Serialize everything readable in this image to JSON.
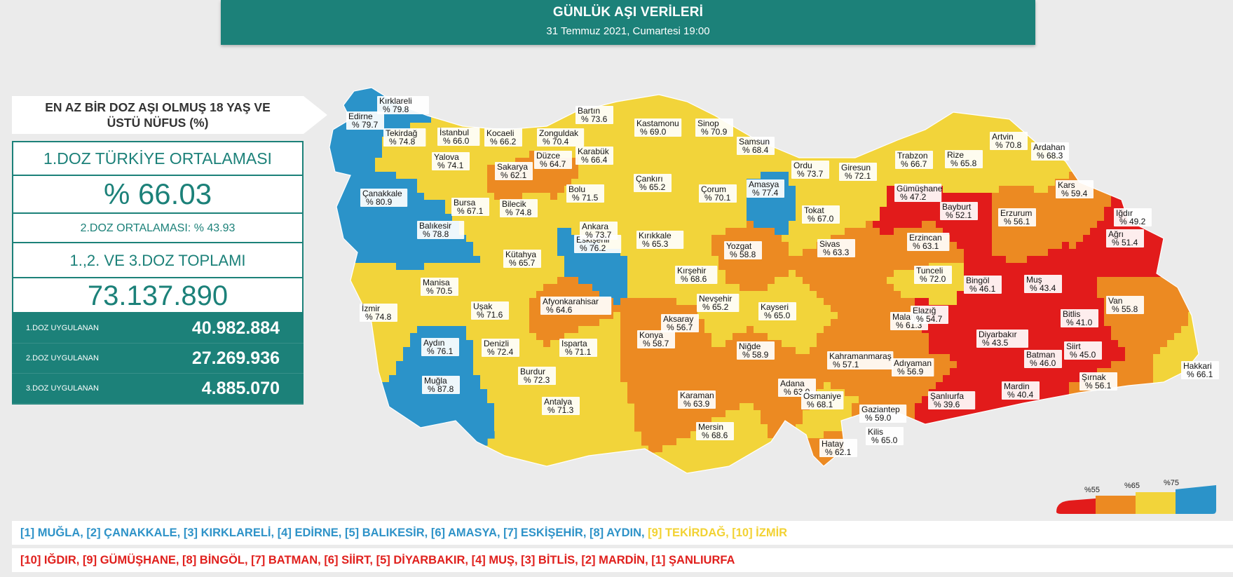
{
  "header": {
    "title": "GÜNLÜK AŞI VERİLERİ",
    "subtitle": "31 Temmuz 2021, Cumartesi 19:00"
  },
  "panel": {
    "title_line1": "EN AZ BİR DOZ AŞI OLMUŞ 18 YAŞ VE",
    "title_line2": "ÜSTÜ NÜFUS (%)",
    "dose1_avg_label": "1.DOZ TÜRKİYE ORTALAMASI",
    "dose1_avg_value": "% 66.03",
    "dose2_avg_label": "2.DOZ ORTALAMASI: % 43.93",
    "total_label": "1.,2. VE 3.DOZ TOPLAMI",
    "total_value": "73.137.890",
    "rows": [
      {
        "label": "1.DOZ UYGULANAN",
        "value": "40.982.884"
      },
      {
        "label": "2.DOZ UYGULANAN",
        "value": "27.269.936"
      },
      {
        "label": "3.DOZ UYGULANAN",
        "value": "4.885.070"
      }
    ]
  },
  "colors": {
    "blue": "#2b93c9",
    "yellow": "#f2d43a",
    "orange": "#ec8a22",
    "red": "#e21b1b",
    "teal": "#1c8179"
  },
  "provinces": [
    {
      "name": "Kırklareli",
      "value": "% 79.8",
      "cat": "blue"
    },
    {
      "name": "Edirne",
      "value": "% 79.7",
      "cat": "blue"
    },
    {
      "name": "Tekirdağ",
      "value": "% 74.8",
      "cat": "yellow"
    },
    {
      "name": "İstanbul",
      "value": "% 66.0",
      "cat": "yellow"
    },
    {
      "name": "Kocaeli",
      "value": "% 66.2",
      "cat": "yellow"
    },
    {
      "name": "Yalova",
      "value": "% 74.1",
      "cat": "yellow"
    },
    {
      "name": "Sakarya",
      "value": "% 62.1",
      "cat": "orange"
    },
    {
      "name": "Düzce",
      "value": "% 64.7",
      "cat": "orange"
    },
    {
      "name": "Zonguldak",
      "value": "% 70.4",
      "cat": "yellow"
    },
    {
      "name": "Bartın",
      "value": "% 73.6",
      "cat": "yellow"
    },
    {
      "name": "Karabük",
      "value": "% 66.4",
      "cat": "yellow"
    },
    {
      "name": "Kastamonu",
      "value": "% 69.0",
      "cat": "yellow"
    },
    {
      "name": "Sinop",
      "value": "% 70.9",
      "cat": "yellow"
    },
    {
      "name": "Samsun",
      "value": "% 68.4",
      "cat": "yellow"
    },
    {
      "name": "Ordu",
      "value": "% 73.7",
      "cat": "yellow"
    },
    {
      "name": "Giresun",
      "value": "% 72.1",
      "cat": "yellow"
    },
    {
      "name": "Trabzon",
      "value": "% 66.7",
      "cat": "yellow"
    },
    {
      "name": "Rize",
      "value": "% 65.8",
      "cat": "yellow"
    },
    {
      "name": "Artvin",
      "value": "% 70.8",
      "cat": "yellow"
    },
    {
      "name": "Ardahan",
      "value": "% 68.3",
      "cat": "yellow"
    },
    {
      "name": "Çanakkale",
      "value": "% 80.9",
      "cat": "blue"
    },
    {
      "name": "Bursa",
      "value": "% 67.1",
      "cat": "yellow"
    },
    {
      "name": "Bilecik",
      "value": "% 74.8",
      "cat": "yellow"
    },
    {
      "name": "Bolu",
      "value": "% 71.5",
      "cat": "yellow"
    },
    {
      "name": "Çankırı",
      "value": "% 65.2",
      "cat": "yellow"
    },
    {
      "name": "Çorum",
      "value": "% 70.1",
      "cat": "yellow"
    },
    {
      "name": "Amasya",
      "value": "% 77.4",
      "cat": "blue"
    },
    {
      "name": "Tokat",
      "value": "% 67.0",
      "cat": "yellow"
    },
    {
      "name": "Gümüşhane",
      "value": "% 47.2",
      "cat": "red"
    },
    {
      "name": "Bayburt",
      "value": "% 52.1",
      "cat": "red"
    },
    {
      "name": "Erzurum",
      "value": "% 56.1",
      "cat": "orange"
    },
    {
      "name": "Kars",
      "value": "% 59.4",
      "cat": "orange"
    },
    {
      "name": "Iğdır",
      "value": "% 49.2",
      "cat": "red"
    },
    {
      "name": "Balıkesir",
      "value": "% 78.8",
      "cat": "blue"
    },
    {
      "name": "Eskişehir",
      "value": "% 76.2",
      "cat": "blue"
    },
    {
      "name": "Ankara",
      "value": "% 73.7",
      "cat": "yellow"
    },
    {
      "name": "Kırıkkale",
      "value": "% 65.3",
      "cat": "yellow"
    },
    {
      "name": "Yozgat",
      "value": "% 58.8",
      "cat": "orange"
    },
    {
      "name": "Sivas",
      "value": "% 63.3",
      "cat": "orange"
    },
    {
      "name": "Erzincan",
      "value": "% 63.1",
      "cat": "orange"
    },
    {
      "name": "Ağrı",
      "value": "% 51.4",
      "cat": "red"
    },
    {
      "name": "Kütahya",
      "value": "% 65.7",
      "cat": "yellow"
    },
    {
      "name": "Manisa",
      "value": "% 70.5",
      "cat": "yellow"
    },
    {
      "name": "Kırşehir",
      "value": "% 68.6",
      "cat": "yellow"
    },
    {
      "name": "Tunceli",
      "value": "% 72.0",
      "cat": "yellow"
    },
    {
      "name": "Bingöl",
      "value": "% 46.1",
      "cat": "red"
    },
    {
      "name": "Muş",
      "value": "% 43.4",
      "cat": "red"
    },
    {
      "name": "İzmir",
      "value": "% 74.8",
      "cat": "yellow"
    },
    {
      "name": "Uşak",
      "value": "% 71.6",
      "cat": "yellow"
    },
    {
      "name": "Afyonkarahisar",
      "value": "% 64.6",
      "cat": "orange"
    },
    {
      "name": "Nevşehir",
      "value": "% 65.2",
      "cat": "yellow"
    },
    {
      "name": "Aksaray",
      "value": "% 56.7",
      "cat": "orange"
    },
    {
      "name": "Kayseri",
      "value": "% 65.0",
      "cat": "yellow"
    },
    {
      "name": "Malatya",
      "value": "% 61.3",
      "cat": "orange"
    },
    {
      "name": "Elazığ",
      "value": "% 54.7",
      "cat": "red"
    },
    {
      "name": "Bitlis",
      "value": "% 41.0",
      "cat": "red"
    },
    {
      "name": "Van",
      "value": "% 55.8",
      "cat": "orange"
    },
    {
      "name": "Aydın",
      "value": "% 76.1",
      "cat": "blue"
    },
    {
      "name": "Denizli",
      "value": "% 72.4",
      "cat": "yellow"
    },
    {
      "name": "Isparta",
      "value": "% 71.1",
      "cat": "yellow"
    },
    {
      "name": "Konya",
      "value": "% 58.7",
      "cat": "orange"
    },
    {
      "name": "Niğde",
      "value": "% 58.9",
      "cat": "orange"
    },
    {
      "name": "Kahramanmaraş",
      "value": "% 57.1",
      "cat": "orange"
    },
    {
      "name": "Adıyaman",
      "value": "% 56.9",
      "cat": "orange"
    },
    {
      "name": "Diyarbakır",
      "value": "% 43.5",
      "cat": "red"
    },
    {
      "name": "Batman",
      "value": "% 46.0",
      "cat": "red"
    },
    {
      "name": "Siirt",
      "value": "% 45.0",
      "cat": "red"
    },
    {
      "name": "Hakkari",
      "value": "% 66.1",
      "cat": "yellow"
    },
    {
      "name": "Muğla",
      "value": "% 87.8",
      "cat": "blue"
    },
    {
      "name": "Burdur",
      "value": "% 72.3",
      "cat": "yellow"
    },
    {
      "name": "Antalya",
      "value": "% 71.3",
      "cat": "yellow"
    },
    {
      "name": "Karaman",
      "value": "% 63.9",
      "cat": "orange"
    },
    {
      "name": "Mersin",
      "value": "% 68.6",
      "cat": "yellow"
    },
    {
      "name": "Adana",
      "value": "% 63.0",
      "cat": "orange"
    },
    {
      "name": "Osmaniye",
      "value": "% 68.1",
      "cat": "yellow"
    },
    {
      "name": "Gaziantep",
      "value": "% 59.0",
      "cat": "orange"
    },
    {
      "name": "Kilis",
      "value": "% 65.0",
      "cat": "yellow"
    },
    {
      "name": "Hatay",
      "value": "% 62.1",
      "cat": "orange"
    },
    {
      "name": "Şanlıurfa",
      "value": "% 39.6",
      "cat": "red"
    },
    {
      "name": "Mardin",
      "value": "% 40.4",
      "cat": "red"
    },
    {
      "name": "Şırnak",
      "value": "% 56.1",
      "cat": "orange"
    }
  ],
  "legend": {
    "ticks": [
      "%55",
      "%65",
      "%75"
    ],
    "colors": [
      "#e21b1b",
      "#ec8a22",
      "#f2d43a",
      "#2b93c9"
    ]
  },
  "top_list": [
    {
      "rank": "[1]",
      "name": "MUĞLA,",
      "color": "blue"
    },
    {
      "rank": "[2]",
      "name": "ÇANAKKALE,",
      "color": "blue"
    },
    {
      "rank": "[3]",
      "name": "KIRKLARELİ,",
      "color": "blue"
    },
    {
      "rank": "[4]",
      "name": "EDİRNE,",
      "color": "blue"
    },
    {
      "rank": "[5]",
      "name": "BALIKESİR,",
      "color": "blue"
    },
    {
      "rank": "[6]",
      "name": "AMASYA,",
      "color": "blue"
    },
    {
      "rank": "[7]",
      "name": "ESKİŞEHİR,",
      "color": "blue"
    },
    {
      "rank": "[8]",
      "name": "AYDIN,",
      "color": "blue"
    },
    {
      "rank": "[9]",
      "name": "TEKİRDAĞ,",
      "color": "yellow"
    },
    {
      "rank": "[10]",
      "name": "İZMİR",
      "color": "yellow"
    }
  ],
  "bottom_list": [
    {
      "rank": "[10]",
      "name": "IĞDIR,",
      "color": "red"
    },
    {
      "rank": "[9]",
      "name": "GÜMÜŞHANE,",
      "color": "red"
    },
    {
      "rank": "[8]",
      "name": "BİNGÖL,",
      "color": "red"
    },
    {
      "rank": "[7]",
      "name": "BATMAN,",
      "color": "red"
    },
    {
      "rank": "[6]",
      "name": "SİİRT,",
      "color": "red"
    },
    {
      "rank": "[5]",
      "name": "DİYARBAKIR,",
      "color": "red"
    },
    {
      "rank": "[4]",
      "name": "MUŞ,",
      "color": "red"
    },
    {
      "rank": "[3]",
      "name": "BİTLİS,",
      "color": "red"
    },
    {
      "rank": "[2]",
      "name": "MARDİN,",
      "color": "red"
    },
    {
      "rank": "[1]",
      "name": "ŞANLIURFA",
      "color": "red"
    }
  ]
}
